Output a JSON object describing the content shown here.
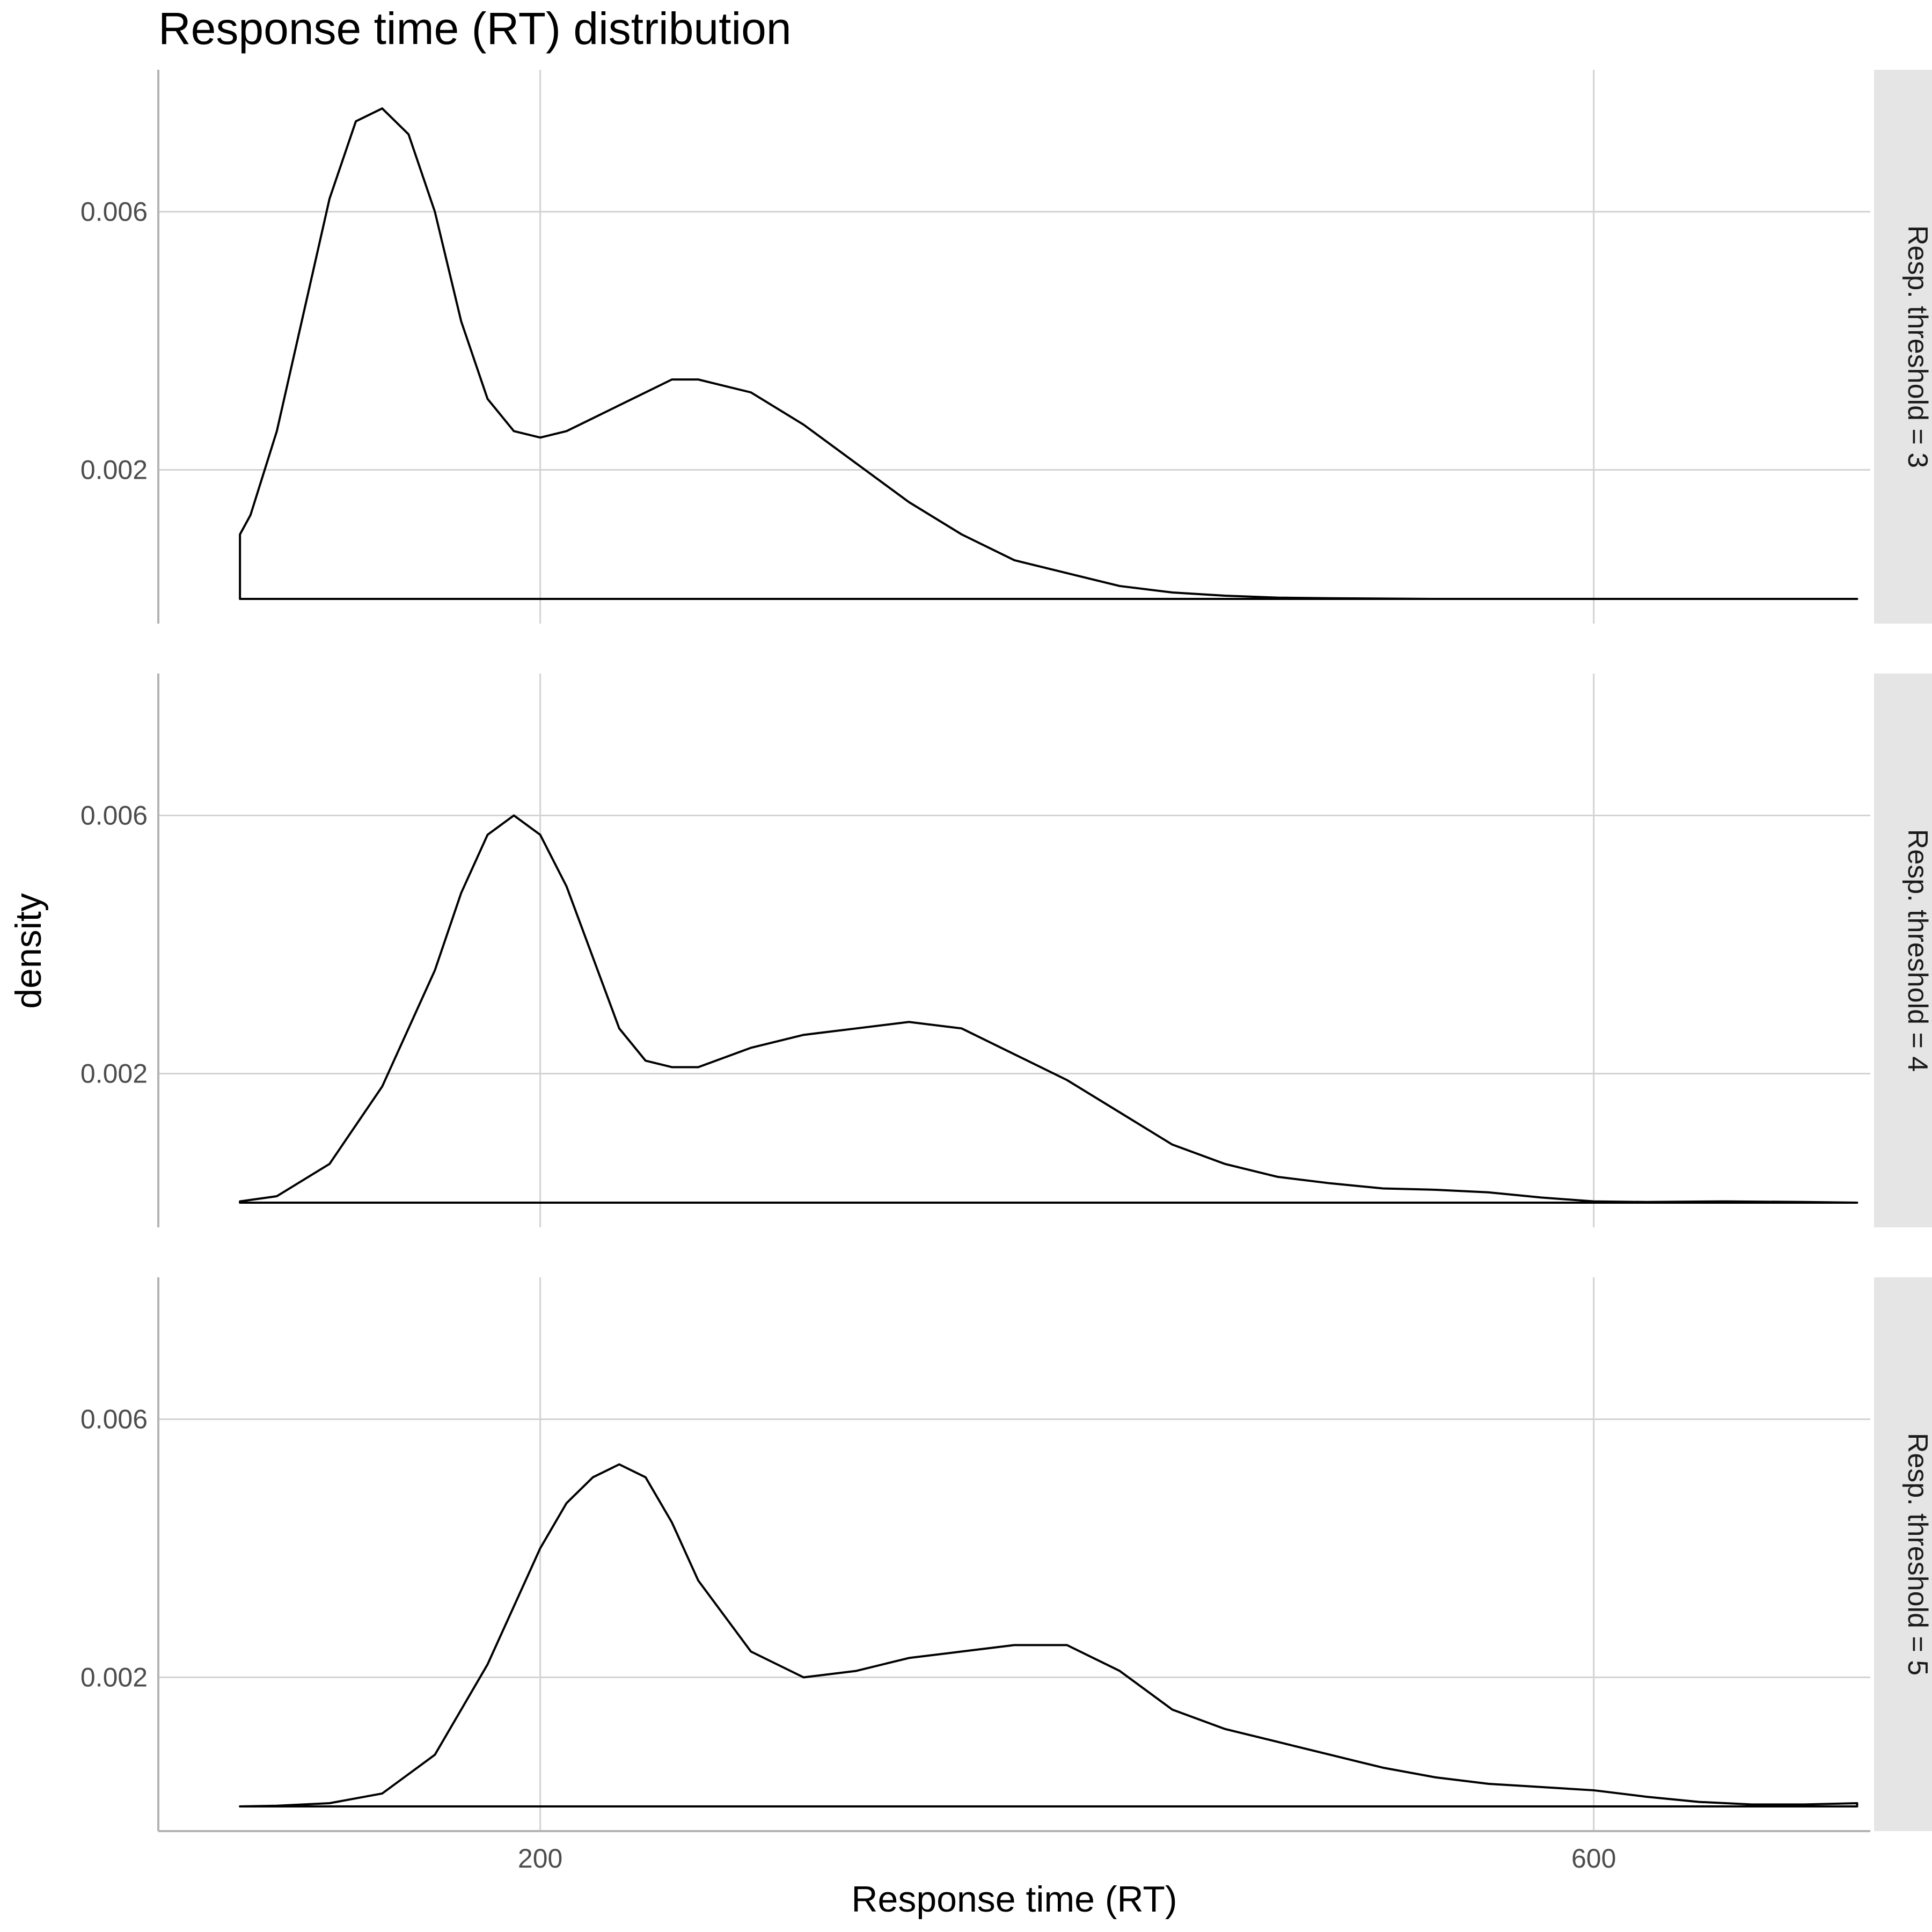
{
  "chart_data": {
    "type": "area",
    "title": "Response time (RT) distribution",
    "xlabel": "Response time (RT)",
    "ylabel": "density",
    "xlim": [
      55,
      705
    ],
    "ylim": [
      0,
      0.0078
    ],
    "x_ticks": [
      200,
      600
    ],
    "y_ticks": [
      0.002,
      0.006
    ],
    "y_tick_labels": [
      "0.002",
      "0.006"
    ],
    "grid": true,
    "facets": [
      {
        "label": "Resp. threshold = 3",
        "x": [
          86,
          90,
          100,
          110,
          120,
          130,
          140,
          150,
          160,
          170,
          180,
          190,
          200,
          210,
          220,
          230,
          240,
          250,
          260,
          270,
          280,
          300,
          320,
          340,
          360,
          380,
          400,
          420,
          440,
          460,
          480,
          500,
          540,
          600,
          650,
          700
        ],
        "y": [
          0.001,
          0.0013,
          0.0026,
          0.0044,
          0.0062,
          0.0074,
          0.0076,
          0.0072,
          0.006,
          0.0043,
          0.0031,
          0.0026,
          0.0025,
          0.0026,
          0.0028,
          0.003,
          0.0032,
          0.0034,
          0.0034,
          0.0033,
          0.0032,
          0.0027,
          0.0021,
          0.0015,
          0.001,
          0.0006,
          0.0004,
          0.0002,
          0.0001,
          5e-05,
          2e-05,
          1e-05,
          0,
          0,
          0,
          0
        ]
      },
      {
        "label": "Resp. threshold = 4",
        "x": [
          86,
          100,
          120,
          140,
          160,
          170,
          180,
          190,
          200,
          210,
          220,
          230,
          240,
          250,
          260,
          280,
          300,
          320,
          340,
          360,
          380,
          400,
          420,
          440,
          460,
          480,
          500,
          520,
          540,
          560,
          580,
          600,
          620,
          650,
          680,
          700
        ],
        "y": [
          2e-05,
          0.0001,
          0.0006,
          0.0018,
          0.0036,
          0.0048,
          0.0057,
          0.006,
          0.0057,
          0.0049,
          0.0038,
          0.0027,
          0.0022,
          0.0021,
          0.0021,
          0.0024,
          0.0026,
          0.0027,
          0.0028,
          0.0027,
          0.0023,
          0.0019,
          0.0014,
          0.0009,
          0.0006,
          0.0004,
          0.0003,
          0.00022,
          0.0002,
          0.00016,
          8e-05,
          2e-05,
          1e-05,
          2e-05,
          1e-05,
          0
        ]
      },
      {
        "label": "Resp. threshold = 5",
        "x": [
          86,
          100,
          120,
          140,
          160,
          180,
          200,
          210,
          220,
          230,
          240,
          250,
          260,
          280,
          300,
          320,
          340,
          360,
          380,
          400,
          420,
          440,
          460,
          480,
          500,
          520,
          540,
          560,
          580,
          600,
          620,
          640,
          660,
          680,
          700
        ],
        "y": [
          0,
          1e-05,
          5e-05,
          0.0002,
          0.0008,
          0.0022,
          0.004,
          0.0047,
          0.0051,
          0.0053,
          0.0051,
          0.0044,
          0.0035,
          0.0024,
          0.002,
          0.0021,
          0.0023,
          0.0024,
          0.0025,
          0.0025,
          0.0021,
          0.0015,
          0.0012,
          0.001,
          0.0008,
          0.0006,
          0.00045,
          0.00035,
          0.0003,
          0.00025,
          0.00015,
          7e-05,
          3e-05,
          3e-05,
          5e-05
        ]
      }
    ]
  }
}
